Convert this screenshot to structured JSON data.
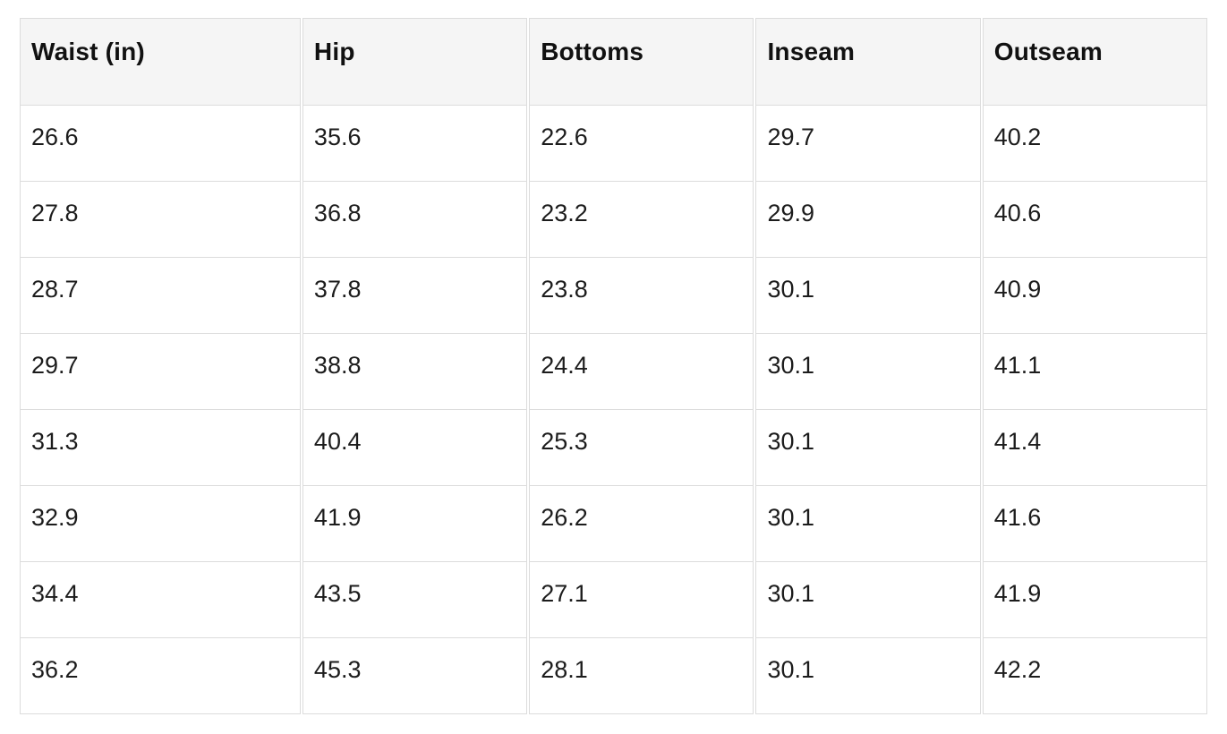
{
  "colors": {
    "header_bg": "#f5f5f5",
    "border": "#dcdcdc",
    "text": "#1c1c1c",
    "page_bg": "#ffffff"
  },
  "chart_data": {
    "type": "table",
    "columns": [
      "Waist (in)",
      "Hip",
      "Bottoms",
      "Inseam",
      "Outseam"
    ],
    "rows": [
      [
        "26.6",
        "35.6",
        "22.6",
        "29.7",
        "40.2"
      ],
      [
        "27.8",
        "36.8",
        "23.2",
        "29.9",
        "40.6"
      ],
      [
        "28.7",
        "37.8",
        "23.8",
        "30.1",
        "40.9"
      ],
      [
        "29.7",
        "38.8",
        "24.4",
        "30.1",
        "41.1"
      ],
      [
        "31.3",
        "40.4",
        "25.3",
        "30.1",
        "41.4"
      ],
      [
        "32.9",
        "41.9",
        "26.2",
        "30.1",
        "41.6"
      ],
      [
        "34.4",
        "43.5",
        "27.1",
        "30.1",
        "41.9"
      ],
      [
        "36.2",
        "45.3",
        "28.1",
        "30.1",
        "42.2"
      ]
    ]
  }
}
